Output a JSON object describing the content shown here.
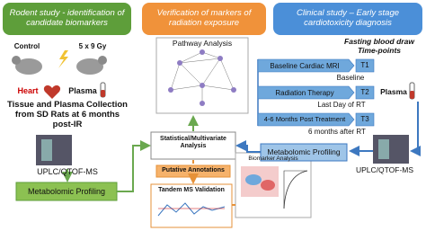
{
  "left": {
    "title": "Rodent study - identification of candidate biomarkers",
    "control": "Control",
    "dose": "5 x 9 Gy",
    "heart": "Heart",
    "plasma": "Plasma",
    "collection": "Tissue and Plasma Collection from SD Rats at 6 months post-IR",
    "instrument": "UPLC/QTOF-MS",
    "profiling": "Metabolomic Profiling"
  },
  "middle": {
    "title": "Verification of  markers of radiation exposure",
    "pathway": "Pathway Analysis",
    "statistical": "Statistical/Multivariate Analysis",
    "putative": "Putative Annotations",
    "tandem": "Tandem MS Validation",
    "biomarker": "Biomarker Analysis"
  },
  "right": {
    "title": "Clinical study – Early stage cardiotoxicity diagnosis",
    "note": "Fasting blood draw Time-points",
    "timeline": [
      {
        "event": "Baseline Cardiac MRI",
        "point": "T1",
        "time": "Baseline"
      },
      {
        "event": "Radiation Therapy",
        "point": "T2",
        "time": "Last  Day of RT"
      },
      {
        "event": "4-6 Months Post Treatment",
        "point": "T3",
        "time": "6 months after RT"
      }
    ],
    "plasma": "Plasma",
    "profiling": "Metabolomic Profiling",
    "instrument": "UPLC/QTOF-MS"
  }
}
